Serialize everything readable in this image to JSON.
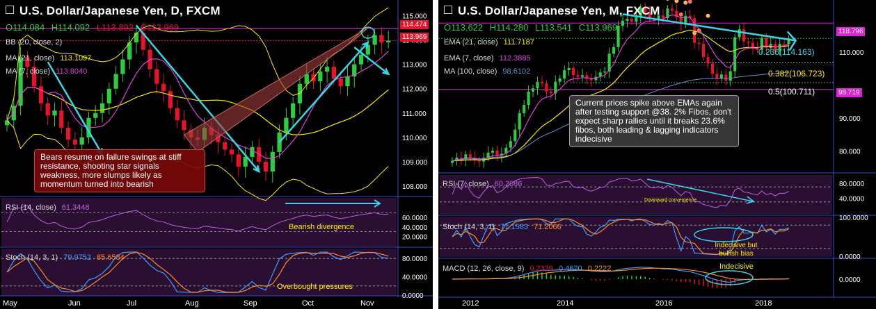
{
  "left": {
    "title": "U.S. Dollar/Japanese Yen, D, FXCM",
    "ohlc": {
      "o": "O114.084",
      "h": "H114.092",
      "l": "L113.892",
      "c": "C113.969"
    },
    "indicators": {
      "bb": "BB (20, close, 2)",
      "ma21": "MA (21, close)",
      "ma21_val": "113.1097",
      "ma7": "MA (7, close)",
      "ma7_val": "113.8040",
      "rsi": "RSI (14, close)",
      "rsi_val": "61.3448",
      "stoch": "Stoch (14, 3, 1)",
      "stoch_k": "79.9752",
      "stoch_d": "85.6584"
    },
    "price_tags": {
      "upper": "114.474",
      "current": "113.969"
    },
    "annotations": {
      "main": "Bears resume on failure swings at stiff resistance, shooting star signals weakness, more slumps likely as momentum turned into bearish",
      "rsi": "Bearish divergence",
      "stoch": "Overbought pressures"
    },
    "colors": {
      "up": "#2ecc40",
      "down": "#e8132b",
      "trend": "#36d7e8",
      "bb": "#ffeb00",
      "ma21": "#ffeb00",
      "ma7": "#e040e0"
    }
  },
  "right": {
    "title": "U.S. Dollar/Japanese Yen, M, FXCM",
    "ohlc": {
      "o": "O113.622",
      "h": "H114.280",
      "l": "L113.541",
      "c": "C113.969"
    },
    "indicators": {
      "ema21": "EMA (21, close)",
      "ema21_val": "111.7187",
      "ema7": "EMA (7, close)",
      "ema7_val": "112.3885",
      "ma100": "MA (100, close)",
      "ma100_val": "98.6102",
      "rsi": "RSI (7, close)",
      "rsi_val": "60.2086",
      "stoch": "Stoch (14, 3, 1)",
      "stoch_k": "71.1583",
      "stoch_d": "71.2066",
      "macd": "MACD (12, 26, close, 9)",
      "macd_1": "0.2339",
      "macd_2": "0.4620",
      "macd_3": "0.2222"
    },
    "price_tags": {
      "upper": "118.796",
      "lower": "98.719"
    },
    "fibs": {
      "f236": "0.236(114.163)",
      "f382": "0.382(106.723)",
      "f5": "0.5(100.711)"
    },
    "annotations": {
      "main": "Current prices spike above EMAs again after testing support @38. 2% Fibos, don't expect sharp rallies until it breaks 23.6% fibos, both leading & lagging indicators indecisive",
      "rsi": "Downward convergence",
      "stoch": "Indecisive but bullish bias",
      "macd": "Indecisive"
    }
  },
  "chart_data": [
    {
      "type": "candlestick",
      "title": "U.S. Dollar/Japanese Yen, D, FXCM",
      "x_ticks": [
        "May",
        "Jun",
        "Jul",
        "Aug",
        "Sep",
        "Oct",
        "Nov"
      ],
      "y_ticks": [
        "115.000",
        "114.000",
        "113.000",
        "112.000",
        "111.000",
        "110.000",
        "109.000",
        "108.000"
      ],
      "ylim": [
        107.6,
        115.3
      ],
      "last": {
        "open": 114.084,
        "high": 114.092,
        "low": 113.892,
        "close": 113.969
      },
      "closes_approx": [
        110.7,
        111.3,
        113.3,
        112.9,
        112.1,
        111.4,
        110.9,
        111.1,
        110.4,
        109.9,
        109.7,
        110.0,
        110.8,
        111.0,
        111.4,
        112.0,
        112.6,
        113.2,
        113.9,
        114.3,
        113.6,
        112.8,
        112.2,
        111.9,
        111.2,
        110.7,
        110.3,
        110.0,
        109.9,
        110.4,
        110.1,
        109.8,
        109.5,
        109.3,
        108.8,
        109.2,
        109.6,
        109.0,
        108.6,
        109.4,
        110.2,
        110.8,
        111.4,
        112.2,
        112.6,
        112.3,
        112.7,
        112.9,
        112.4,
        112.1,
        112.5,
        113.0,
        113.4,
        113.8,
        114.2,
        113.9,
        113.969
      ],
      "rsi": {
        "title": "RSI (14, close)",
        "last": 61.3448,
        "y_ticks": [
          "60.0000",
          "40.0000",
          "20.0000"
        ]
      },
      "stoch": {
        "title": "Stoch (14, 3, 1)",
        "k": 79.9752,
        "d": 85.6584,
        "y_ticks": [
          "80.0000",
          "40.0000",
          "0.0000"
        ]
      }
    },
    {
      "type": "candlestick",
      "title": "U.S. Dollar/Japanese Yen, M, FXCM",
      "x_ticks": [
        "2012",
        "2014",
        "2016",
        "2018"
      ],
      "y_ticks": [
        "110.000",
        "90.000",
        "80.000"
      ],
      "ylim": [
        74,
        122
      ],
      "last": {
        "open": 113.622,
        "high": 114.28,
        "low": 113.541,
        "close": 113.969
      },
      "fibonacci": [
        {
          "level": 0.236,
          "price": 114.163
        },
        {
          "level": 0.382,
          "price": 106.723
        },
        {
          "level": 0.5,
          "price": 100.711
        }
      ],
      "closes_approx": [
        77,
        78,
        77.5,
        79,
        78,
        77.2,
        76.8,
        78,
        79.5,
        80.1,
        78.6,
        79.2,
        81,
        83,
        86.5,
        91.5,
        94,
        98,
        99,
        101,
        100.5,
        98,
        97.5,
        101,
        102,
        104.5,
        105.2,
        103,
        102.5,
        103,
        102,
        101.5,
        102.5,
        103.8,
        104.1,
        109.5,
        111.5,
        118,
        119.5,
        120.1,
        119.2,
        120.5,
        123.5,
        122,
        120.1,
        119.8,
        121.1,
        120.3,
        123.2,
        122.5,
        120.5,
        118.4,
        121,
        120.3,
        112.8,
        112.5,
        108.5,
        106.5,
        103.4,
        102.1,
        103.2,
        101.3,
        104.2,
        114.5,
        116.9,
        113.2,
        112.8,
        111.3,
        110.7,
        114.3,
        111.3,
        112.5,
        110.3,
        112.5,
        112.4,
        113.969
      ],
      "rsi": {
        "title": "RSI (7, close)",
        "last": 60.2086,
        "y_ticks": [
          "80.0000",
          "40.0000"
        ]
      },
      "stoch": {
        "title": "Stoch (14, 3, 1)",
        "k": 71.1583,
        "d": 71.2066,
        "y_ticks": [
          "100.0000",
          "0.0000"
        ]
      },
      "macd": {
        "title": "MACD (12, 26, close, 9)",
        "values": [
          0.2339,
          0.462,
          0.2222
        ],
        "y_ticks": [
          "0.0000"
        ]
      }
    }
  ]
}
